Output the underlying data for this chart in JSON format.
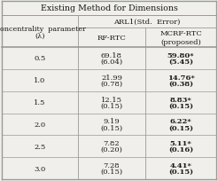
{
  "title": "Existing Method for Dimensions",
  "col_header_1": "ARL1(Std.  Error)",
  "col_header_2a": "RF-RTC",
  "col_header_2b": "MCRF-RTC\n(proposed)",
  "row_header_label1": "Noncentrality  parameter",
  "row_header_label2": "(λ)",
  "rows": [
    {
      "lambda": "0.5",
      "rf_top": "69.18",
      "rf_bot": "(6.04)",
      "mcrf_top": "59.80*",
      "mcrf_bot": "(5.45)"
    },
    {
      "lambda": "1.0",
      "rf_top": "21.99",
      "rf_bot": "(0.78)",
      "mcrf_top": "14.76*",
      "mcrf_bot": "(0.38)"
    },
    {
      "lambda": "1.5",
      "rf_top": "12.15",
      "rf_bot": "(0.15)",
      "mcrf_top": "8.83*",
      "mcrf_bot": "(0.15)"
    },
    {
      "lambda": "2.0",
      "rf_top": "9.19",
      "rf_bot": "(0.15)",
      "mcrf_top": "6.22*",
      "mcrf_bot": "(0.15)"
    },
    {
      "lambda": "2.5",
      "rf_top": "7.82",
      "rf_bot": "(0.20)",
      "mcrf_top": "5.11*",
      "mcrf_bot": "(0.16)"
    },
    {
      "lambda": "3.0",
      "rf_top": "7.28",
      "rf_bot": "(0.15)",
      "mcrf_top": "4.41*",
      "mcrf_bot": "(0.15)"
    }
  ],
  "bg_color": "#f0efeb",
  "line_color": "#999999",
  "text_color": "#1a1a1a",
  "font_size": 6.0,
  "title_font_size": 6.8
}
